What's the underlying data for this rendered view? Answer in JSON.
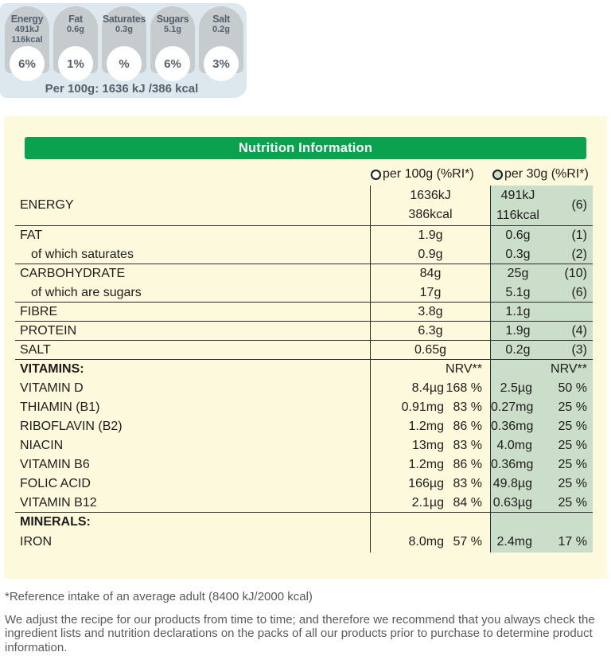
{
  "traffic_lights": {
    "badges": [
      {
        "name": "Energy",
        "values": [
          "491kJ",
          "116kcal"
        ],
        "percent": "6%"
      },
      {
        "name": "Fat",
        "values": [
          "0.6g"
        ],
        "percent": "1%"
      },
      {
        "name": "Saturates",
        "values": [
          "0.3g"
        ],
        "percent": "%"
      },
      {
        "name": "Sugars",
        "values": [
          "5.1g"
        ],
        "percent": "6%"
      },
      {
        "name": "Salt",
        "values": [
          "0.2g"
        ],
        "percent": "3%"
      }
    ],
    "per_100g_summary": "Per 100g: 1636 kJ /386 kcal"
  },
  "table": {
    "title": "Nutrition Information",
    "col_100g": "per 100g (%RI*)",
    "col_30g": "per 30g (%RI*)",
    "nrv_label": "NRV**",
    "rows": {
      "energy": {
        "label": "ENERGY",
        "v100a": "1636kJ",
        "v100b": "386kcal",
        "v30a": "491kJ",
        "v30b": "116kcal",
        "pct": "(6)"
      },
      "fat": {
        "label": "FAT",
        "v100": "1.9g",
        "v30": "0.6g",
        "pct": "(1)"
      },
      "saturates": {
        "label": "of which saturates",
        "v100": "0.9g",
        "v30": "0.3g",
        "pct": "(2)"
      },
      "carbohydrate": {
        "label": "CARBOHYDRATE",
        "v100": "84g",
        "v30": "25g",
        "pct": "(10)"
      },
      "sugars": {
        "label": "of which are sugars",
        "v100": "17g",
        "v30": "5.1g",
        "pct": "(6)"
      },
      "fibre": {
        "label": "FIBRE",
        "v100": "3.8g",
        "v30": "1.1g",
        "pct": ""
      },
      "protein": {
        "label": "PROTEIN",
        "v100": "6.3g",
        "v30": "1.9g",
        "pct": "(4)"
      },
      "salt": {
        "label": "SALT",
        "v100": "0.65g",
        "v30": "0.2g",
        "pct": "(3)"
      },
      "vitamins_header": {
        "label": "VITAMINS:"
      },
      "vitamin_d": {
        "label": "VITAMIN D",
        "v100": "8.4µg",
        "p100": "168 %",
        "v30": "2.5µg",
        "p30": "50 %"
      },
      "thiamin": {
        "label": "THIAMIN (B1)",
        "v100": "0.91mg",
        "p100": "83 %",
        "v30": "0.27mg",
        "p30": "25 %"
      },
      "riboflavin": {
        "label": "RIBOFLAVIN (B2)",
        "v100": "1.2mg",
        "p100": "86 %",
        "v30": "0.36mg",
        "p30": "25 %"
      },
      "niacin": {
        "label": "NIACIN",
        "v100": "13mg",
        "p100": "83 %",
        "v30": "4.0mg",
        "p30": "25 %"
      },
      "vitamin_b6": {
        "label": "VITAMIN B6",
        "v100": "1.2mg",
        "p100": "86 %",
        "v30": "0.36mg",
        "p30": "25 %"
      },
      "folic_acid": {
        "label": "FOLIC ACID",
        "v100": "166µg",
        "p100": "83 %",
        "v30": "49.8µg",
        "p30": "25 %"
      },
      "vitamin_b12": {
        "label": "VITAMIN B12",
        "v100": "2.1µg",
        "p100": "84 %",
        "v30": "0.63µg",
        "p30": "25 %"
      },
      "minerals_header": {
        "label": "MINERALS:"
      },
      "iron": {
        "label": "IRON",
        "v100": "8.0mg",
        "p100": "57 %",
        "v30": "2.4mg",
        "p30": "17 %"
      }
    }
  },
  "footnotes": {
    "reference": "*Reference intake of an average adult (8400 kJ/2000 kcal)",
    "disclaimer": "We adjust the recipe for our products from time to time; and therefore we recommend that you always check the ingredient lists and nutrition declarations on the packs of all our products prior to purchase to determine product information."
  },
  "colors": {
    "green_bar": "#0aa24f",
    "green_column": "#cbdec9",
    "panel_yellow": "#fdf9dc",
    "badge_gray": "#c6cbce",
    "panel_blue": "#dde8ee",
    "slate_text": "#54616c",
    "line": "#2e2e2c"
  }
}
